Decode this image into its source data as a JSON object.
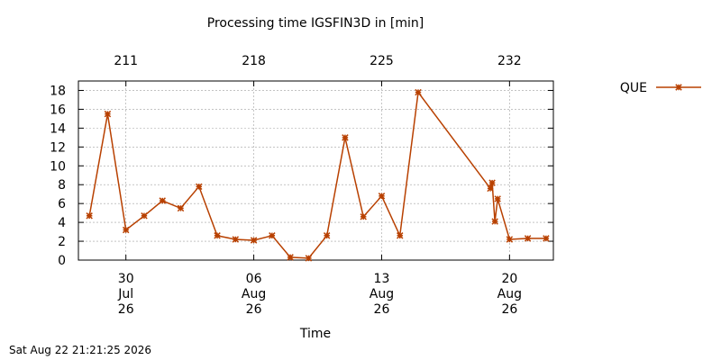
{
  "chart_data": {
    "type": "line",
    "title": "Processing time IGSFIN3D in [min]",
    "xlabel": "Time",
    "ylabel": "",
    "ylim": [
      0,
      19
    ],
    "xlim": [
      208.4,
      234.4
    ],
    "grid": true,
    "legend_position": "top-right",
    "x_bottom_ticks": [
      {
        "x": 211,
        "lines": [
          "30",
          "Jul",
          "26"
        ]
      },
      {
        "x": 218,
        "lines": [
          "06",
          "Aug",
          "26"
        ]
      },
      {
        "x": 225,
        "lines": [
          "13",
          "Aug",
          "26"
        ]
      },
      {
        "x": 232,
        "lines": [
          "20",
          "Aug",
          "26"
        ]
      }
    ],
    "x_top_ticks": [
      "211",
      "218",
      "225",
      "232"
    ],
    "y_ticks": [
      0,
      2,
      4,
      6,
      8,
      10,
      12,
      14,
      16,
      18
    ],
    "series": [
      {
        "name": "QUE",
        "color": "#b84000",
        "x": [
          209,
          210,
          211,
          212,
          213,
          214,
          215,
          216,
          217,
          218,
          219,
          220,
          221,
          222,
          223,
          224,
          225,
          226,
          227,
          230.95,
          231.05,
          231.2,
          231.35,
          232,
          233,
          234
        ],
        "y": [
          4.7,
          15.5,
          3.2,
          4.7,
          6.3,
          5.5,
          7.8,
          2.6,
          2.2,
          2.1,
          2.6,
          0.3,
          0.2,
          2.6,
          13.0,
          4.6,
          6.8,
          2.6,
          17.8,
          7.6,
          8.2,
          4.1,
          6.5,
          2.2,
          2.3,
          2.3
        ]
      }
    ]
  },
  "footer": {
    "timestamp": "Sat Aug 22 21:21:25 2026"
  }
}
